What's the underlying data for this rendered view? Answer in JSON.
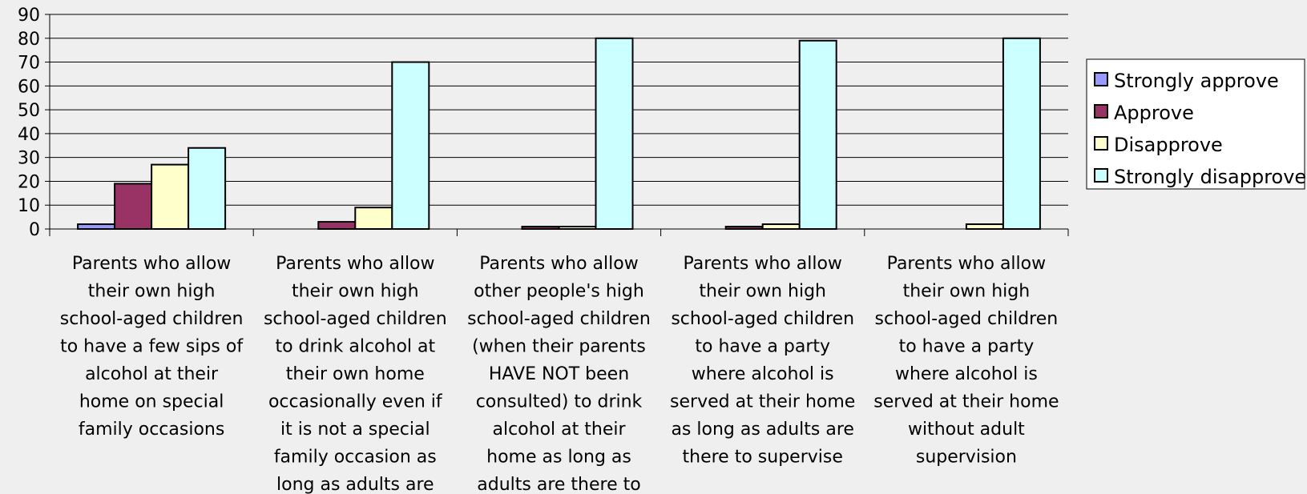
{
  "chart_data": {
    "type": "bar",
    "title": "",
    "xlabel": "",
    "ylabel": "",
    "ylim": [
      0,
      90
    ],
    "yticks": [
      0,
      10,
      20,
      30,
      40,
      50,
      60,
      70,
      80,
      90
    ],
    "grid": true,
    "legend_position": "right",
    "categories": [
      [
        "Parents who allow",
        "their own high",
        "school-aged children",
        "to have a few sips of",
        "alcohol at their",
        "home on special",
        "family occasions"
      ],
      [
        "Parents who allow",
        "their own high",
        "school-aged children",
        "to drink alcohol at",
        "their own home",
        "occasionally even if",
        "it is not a special",
        "family occasion as",
        "long as adults are"
      ],
      [
        "Parents who allow",
        "other people's high",
        "school-aged children",
        "(when their parents",
        "HAVE NOT been",
        "consulted) to drink",
        "alcohol at their",
        "home as long as",
        "adults are there to"
      ],
      [
        "Parents who allow",
        "their own high",
        "school-aged children",
        "to have a party",
        "where alcohol is",
        "served at their home",
        "as long as adults are",
        "there to supervise"
      ],
      [
        "Parents who allow",
        "their own high",
        "school-aged children",
        "to have a party",
        "where alcohol is",
        "served at their home",
        "without adult",
        "supervision"
      ]
    ],
    "series": [
      {
        "name": "Strongly approve",
        "color": "#9999ff",
        "values": [
          2,
          0,
          0,
          0,
          0
        ]
      },
      {
        "name": "Approve",
        "color": "#993366",
        "values": [
          19,
          3,
          1,
          1,
          0
        ]
      },
      {
        "name": "Disapprove",
        "color": "#ffffcc",
        "values": [
          27,
          9,
          1,
          2,
          2
        ]
      },
      {
        "name": "Strongly disapprove",
        "color": "#ccffff",
        "values": [
          34,
          70,
          80,
          79,
          80
        ]
      }
    ]
  }
}
